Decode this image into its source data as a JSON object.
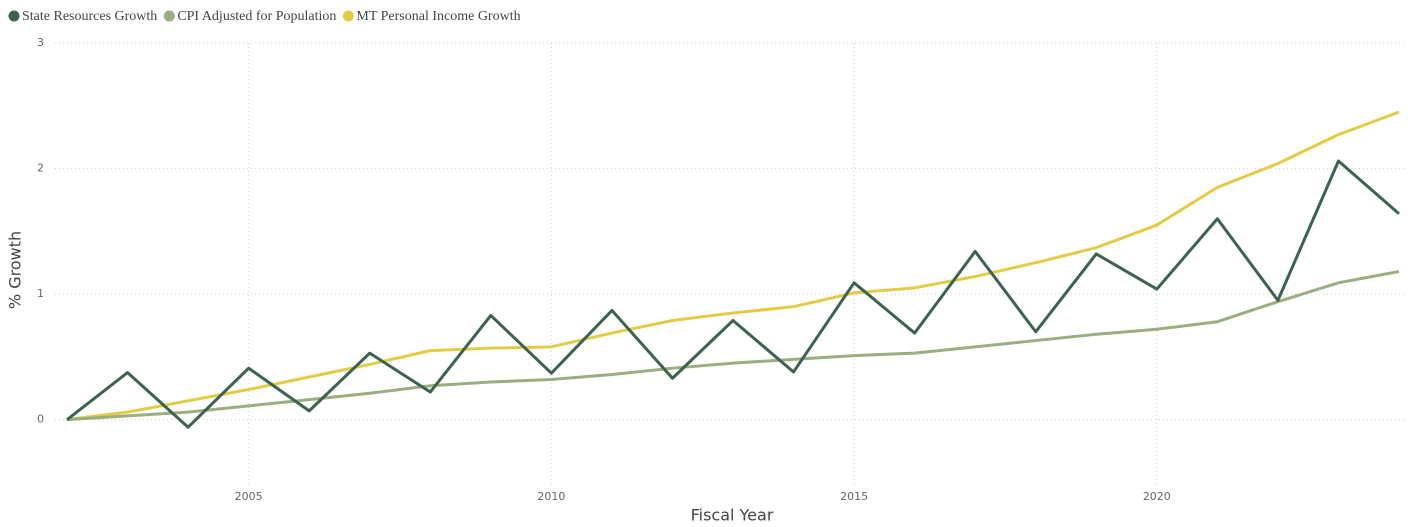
{
  "chart_data": {
    "type": "line",
    "x": [
      2002,
      2003,
      2004,
      2005,
      2006,
      2007,
      2008,
      2009,
      2010,
      2011,
      2012,
      2013,
      2014,
      2015,
      2016,
      2017,
      2018,
      2019,
      2020,
      2021,
      2022,
      2023,
      2024
    ],
    "series": [
      {
        "name": "State Resources Growth",
        "color": "#3b634d",
        "values": [
          0,
          0.375,
          -0.06,
          0.41,
          0.07,
          0.53,
          0.22,
          0.83,
          0.37,
          0.87,
          0.33,
          0.79,
          0.38,
          1.09,
          0.69,
          1.34,
          0.7,
          1.32,
          1.04,
          1.6,
          0.95,
          2.06,
          1.64
        ]
      },
      {
        "name": "CPI Adjusted for Population",
        "color": "#9aae82",
        "values": [
          0,
          0.03,
          0.06,
          0.11,
          0.16,
          0.21,
          0.27,
          0.3,
          0.32,
          0.36,
          0.41,
          0.45,
          0.48,
          0.51,
          0.53,
          0.58,
          0.63,
          0.68,
          0.72,
          0.78,
          0.94,
          1.09,
          1.18
        ]
      },
      {
        "name": "MT Personal Income Growth",
        "color": "#e3cc45",
        "values": [
          0,
          0.06,
          0.15,
          0.24,
          0.34,
          0.44,
          0.55,
          0.57,
          0.58,
          0.69,
          0.79,
          0.85,
          0.9,
          1.01,
          1.05,
          1.14,
          1.25,
          1.37,
          1.55,
          1.85,
          2.04,
          2.27,
          2.45
        ]
      }
    ],
    "x_label": "Fiscal Year",
    "y_label": "% Growth",
    "xlim": [
      2002,
      2024
    ],
    "xticks": [
      2005,
      2010,
      2015,
      2020
    ],
    "ylim": [
      -0.6,
      3
    ],
    "yticks": [
      0,
      1,
      2,
      3
    ],
    "grid": true,
    "legend": "top-left"
  }
}
